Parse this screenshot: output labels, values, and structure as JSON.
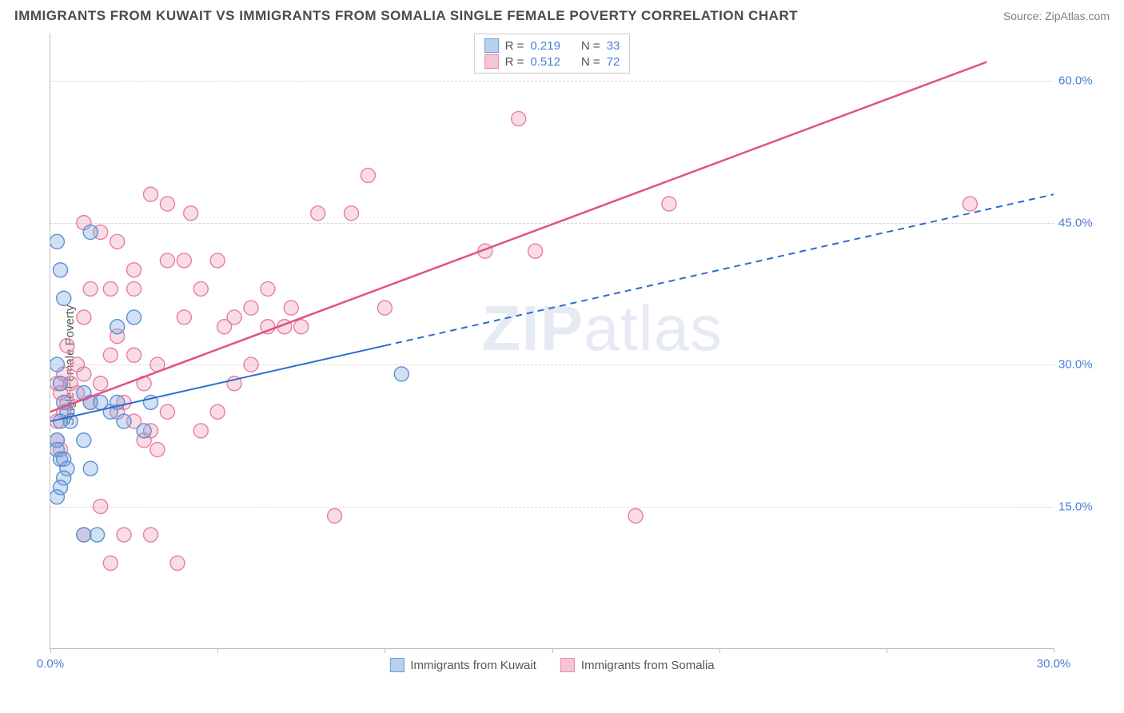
{
  "header": {
    "title": "IMMIGRANTS FROM KUWAIT VS IMMIGRANTS FROM SOMALIA SINGLE FEMALE POVERTY CORRELATION CHART",
    "source": "Source: ZipAtlas.com"
  },
  "watermark": {
    "left": "ZIP",
    "right": "atlas"
  },
  "chart": {
    "type": "scatter",
    "ylabel": "Single Female Poverty",
    "background_color": "#ffffff",
    "grid_color": "#d8d8d8",
    "axis_color": "#bbbbbb",
    "label_color": "#4a7fd6",
    "text_color": "#555555",
    "xlim": [
      0,
      30
    ],
    "ylim": [
      0,
      65
    ],
    "yticks": [
      15.0,
      30.0,
      45.0,
      60.0
    ],
    "xticks": [
      0.0,
      30.0
    ],
    "xtick_marks": [
      0,
      5,
      10,
      15,
      20,
      25,
      30
    ],
    "ytick_fmt": "60.0%",
    "marker_radius": 9,
    "marker_stroke_width": 1.4,
    "series": {
      "kuwait": {
        "label": "Immigrants from Kuwait",
        "color_fill": "rgba(120,165,225,0.35)",
        "color_stroke": "#5e8fd0",
        "swatch_fill": "#b9d0ee",
        "swatch_border": "#6f9bd8",
        "R": "0.219",
        "N": "33",
        "trend": {
          "solid_from": [
            0,
            24
          ],
          "solid_to": [
            10,
            32
          ],
          "dash_to": [
            30,
            48
          ],
          "width": 2,
          "color": "#2f6bd0"
        },
        "points": [
          [
            0.2,
            43
          ],
          [
            0.4,
            37
          ],
          [
            0.3,
            40
          ],
          [
            0.2,
            30
          ],
          [
            0.3,
            28
          ],
          [
            0.4,
            26
          ],
          [
            0.5,
            25
          ],
          [
            0.3,
            24
          ],
          [
            0.6,
            24
          ],
          [
            0.2,
            22
          ],
          [
            0.2,
            21
          ],
          [
            0.3,
            20
          ],
          [
            0.4,
            20
          ],
          [
            0.5,
            19
          ],
          [
            0.4,
            18
          ],
          [
            0.3,
            17
          ],
          [
            0.2,
            16
          ],
          [
            1.0,
            27
          ],
          [
            1.2,
            26
          ],
          [
            1.5,
            26
          ],
          [
            1.8,
            25
          ],
          [
            2.0,
            34
          ],
          [
            2.2,
            24
          ],
          [
            2.8,
            23
          ],
          [
            2.5,
            35
          ],
          [
            1.0,
            12
          ],
          [
            1.4,
            12
          ],
          [
            1.2,
            44
          ],
          [
            2.0,
            26
          ],
          [
            3.0,
            26
          ],
          [
            1.0,
            22
          ],
          [
            1.2,
            19
          ],
          [
            10.5,
            29
          ]
        ]
      },
      "somalia": {
        "label": "Immigrants from Somalia",
        "color_fill": "rgba(240,140,170,0.30)",
        "color_stroke": "#e57fa0",
        "swatch_fill": "#f6c5d3",
        "swatch_border": "#e88aa8",
        "R": "0.512",
        "N": "72",
        "trend": {
          "solid_from": [
            0,
            25
          ],
          "solid_to": [
            28,
            62
          ],
          "width": 2.5,
          "color": "#e0537e"
        },
        "points": [
          [
            0.2,
            28
          ],
          [
            0.3,
            27
          ],
          [
            0.4,
            25
          ],
          [
            0.2,
            24
          ],
          [
            0.2,
            22
          ],
          [
            0.3,
            21
          ],
          [
            0.5,
            26
          ],
          [
            0.6,
            28
          ],
          [
            0.8,
            27
          ],
          [
            1.0,
            29
          ],
          [
            1.2,
            26
          ],
          [
            1.5,
            28
          ],
          [
            1.8,
            31
          ],
          [
            2.0,
            25
          ],
          [
            2.2,
            26
          ],
          [
            2.5,
            24
          ],
          [
            2.8,
            22
          ],
          [
            3.0,
            23
          ],
          [
            3.2,
            21
          ],
          [
            3.5,
            25
          ],
          [
            1.0,
            45
          ],
          [
            1.5,
            44
          ],
          [
            2.0,
            43
          ],
          [
            2.5,
            40
          ],
          [
            3.0,
            48
          ],
          [
            3.5,
            47
          ],
          [
            4.0,
            35
          ],
          [
            4.5,
            38
          ],
          [
            5.0,
            41
          ],
          [
            5.5,
            35
          ],
          [
            6.0,
            36
          ],
          [
            6.5,
            34
          ],
          [
            4.5,
            23
          ],
          [
            5.0,
            25
          ],
          [
            5.5,
            28
          ],
          [
            6.0,
            30
          ],
          [
            7.0,
            34
          ],
          [
            7.5,
            34
          ],
          [
            8.0,
            46
          ],
          [
            9.0,
            46
          ],
          [
            9.5,
            50
          ],
          [
            10.0,
            36
          ],
          [
            13.0,
            42
          ],
          [
            14.0,
            56
          ],
          [
            14.5,
            42
          ],
          [
            17.5,
            14
          ],
          [
            18.5,
            47
          ],
          [
            1.2,
            38
          ],
          [
            1.8,
            38
          ],
          [
            2.5,
            38
          ],
          [
            3.5,
            41
          ],
          [
            4.0,
            41
          ],
          [
            1.5,
            15
          ],
          [
            2.2,
            12
          ],
          [
            3.0,
            12
          ],
          [
            3.8,
            9
          ],
          [
            1.8,
            9
          ],
          [
            1.0,
            12
          ],
          [
            8.5,
            14
          ],
          [
            27.5,
            47
          ],
          [
            0.5,
            32
          ],
          [
            0.8,
            30
          ],
          [
            1.0,
            35
          ],
          [
            0.4,
            29
          ],
          [
            2.8,
            28
          ],
          [
            3.2,
            30
          ],
          [
            2.0,
            33
          ],
          [
            2.5,
            31
          ],
          [
            6.5,
            38
          ],
          [
            7.2,
            36
          ],
          [
            5.2,
            34
          ],
          [
            4.2,
            46
          ]
        ]
      }
    },
    "legend_top_labels": {
      "R": "R =",
      "N": "N ="
    }
  }
}
